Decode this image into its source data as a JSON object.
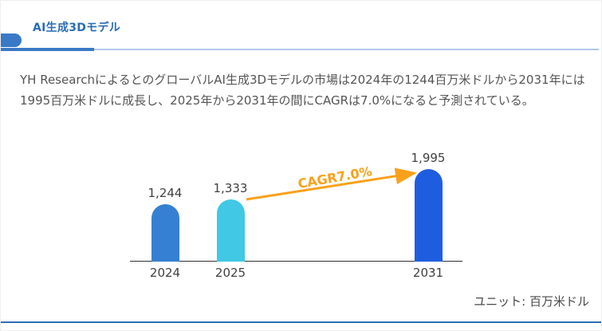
{
  "header": {
    "title": "AI生成3Dモデル",
    "title_color": "#2a6cb5",
    "accent_color": "#3a79c6",
    "underline_thin_color": "#6f9bd4"
  },
  "summary": {
    "text": "YH ResearchによるとのグローバルAI生成3Dモデルの市場は2024年の1244百万米ドルから2031年には1995百万米ドルに成長し、2025年から2031年の間にCAGRは7.0%になると予測されている。"
  },
  "chart_data": {
    "type": "bar",
    "title": "",
    "categories": [
      "2024",
      "2025",
      "2031"
    ],
    "values": [
      1244,
      1333,
      1995
    ],
    "value_labels": [
      "1,244",
      "1,333",
      "1,995"
    ],
    "bar_colors": [
      "#3580d2",
      "#40c8e4",
      "#1f5de0"
    ],
    "ylim": [
      0,
      1995
    ],
    "grid": "off",
    "axis_color": "#2f2f2f",
    "label_color": "#404040",
    "annotation": {
      "text": "CAGR7.0%",
      "color": "#f9a11b",
      "from_category": "2025",
      "to_category": "2031"
    },
    "unit_label": "ユニット: 百万米ドル"
  },
  "footer": {
    "divider_color": "#2d6fb2"
  }
}
